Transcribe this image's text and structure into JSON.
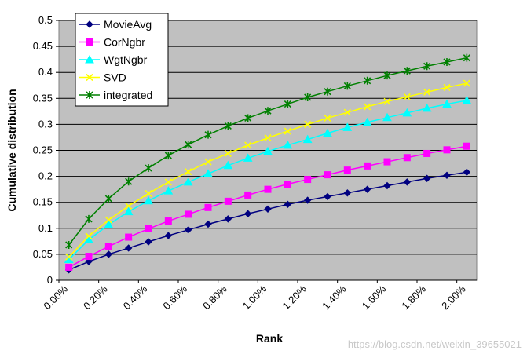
{
  "chart_data": {
    "type": "line",
    "title": "",
    "xlabel": "Rank",
    "ylabel": "Cumulative distribution",
    "x_tick_labels": [
      "0.00%",
      "0.20%",
      "0.40%",
      "0.60%",
      "0.80%",
      "1.00%",
      "1.20%",
      "1.40%",
      "1.60%",
      "1.80%",
      "2.00%"
    ],
    "y_tick_labels": [
      "0",
      "0.05",
      "0.1",
      "0.15",
      "0.2",
      "0.25",
      "0.3",
      "0.35",
      "0.4",
      "0.45",
      "0.5"
    ],
    "xlim": [
      0.0,
      2.1
    ],
    "ylim": [
      0,
      0.5
    ],
    "grid": "horizontal",
    "legend_position": "top-left",
    "x": [
      0.05,
      0.15,
      0.25,
      0.35,
      0.45,
      0.55,
      0.65,
      0.75,
      0.85,
      0.95,
      1.05,
      1.15,
      1.25,
      1.35,
      1.45,
      1.55,
      1.65,
      1.75,
      1.85,
      1.95,
      2.05
    ],
    "series": [
      {
        "name": "MovieAvg",
        "color": "#000080",
        "marker": "diamond",
        "values": [
          0.02,
          0.036,
          0.05,
          0.062,
          0.074,
          0.086,
          0.097,
          0.108,
          0.118,
          0.128,
          0.137,
          0.146,
          0.154,
          0.161,
          0.168,
          0.175,
          0.182,
          0.189,
          0.196,
          0.202,
          0.208
        ]
      },
      {
        "name": "CorNgbr",
        "color": "#ff00ff",
        "marker": "square",
        "values": [
          0.025,
          0.046,
          0.065,
          0.083,
          0.099,
          0.114,
          0.127,
          0.14,
          0.152,
          0.164,
          0.175,
          0.185,
          0.194,
          0.203,
          0.212,
          0.22,
          0.228,
          0.236,
          0.244,
          0.251,
          0.258
        ]
      },
      {
        "name": "WgtNgbr",
        "color": "#00ffff",
        "marker": "triangle",
        "values": [
          0.04,
          0.078,
          0.107,
          0.132,
          0.153,
          0.172,
          0.189,
          0.205,
          0.221,
          0.235,
          0.248,
          0.26,
          0.271,
          0.283,
          0.294,
          0.304,
          0.313,
          0.322,
          0.331,
          0.339,
          0.346
        ]
      },
      {
        "name": "SVD",
        "color": "#ffff00",
        "marker": "x",
        "values": [
          0.045,
          0.085,
          0.116,
          0.143,
          0.167,
          0.189,
          0.209,
          0.228,
          0.244,
          0.26,
          0.274,
          0.287,
          0.3,
          0.312,
          0.323,
          0.334,
          0.344,
          0.353,
          0.362,
          0.371,
          0.379
        ]
      },
      {
        "name": "integrated",
        "color": "#008000",
        "marker": "star",
        "values": [
          0.068,
          0.118,
          0.157,
          0.19,
          0.216,
          0.24,
          0.261,
          0.28,
          0.297,
          0.312,
          0.326,
          0.339,
          0.352,
          0.363,
          0.374,
          0.384,
          0.394,
          0.403,
          0.412,
          0.42,
          0.428
        ]
      }
    ]
  },
  "watermark": "https://blog.csdn.net/weixin_39655021",
  "colors": {
    "plot_background": "#c0c0c0",
    "gridline": "#000000"
  }
}
